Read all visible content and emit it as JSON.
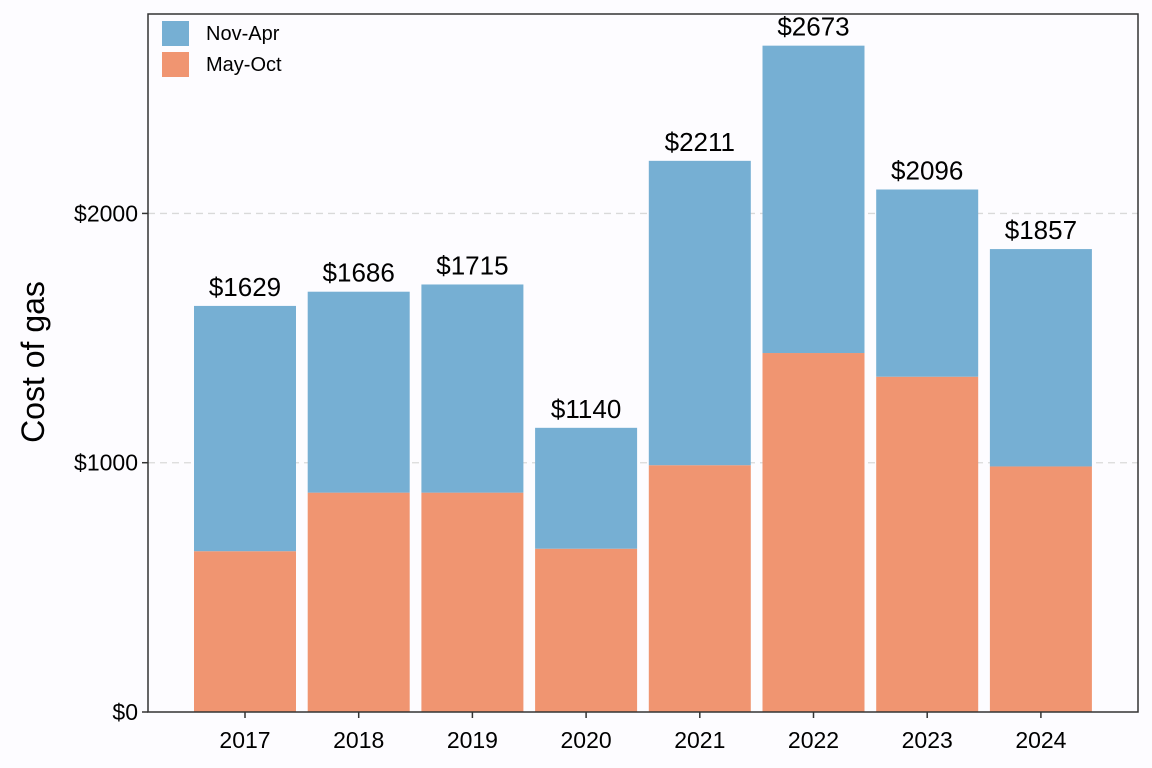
{
  "chart_data": {
    "type": "bar",
    "stacked": true,
    "ylabel": "Cost of gas",
    "xlabel": "",
    "ylim": [
      0,
      2800
    ],
    "y_ticks": [
      0,
      1000,
      2000
    ],
    "y_tick_labels": [
      "$0",
      "$1000",
      "$2000"
    ],
    "grid": "horizontal dashed",
    "legend_position": "top-left",
    "categories": [
      "2017",
      "2018",
      "2019",
      "2020",
      "2021",
      "2022",
      "2023",
      "2024"
    ],
    "series": [
      {
        "name": "May-Oct",
        "color": "#f09571",
        "values": [
          645,
          880,
          880,
          655,
          990,
          1440,
          1345,
          985
        ]
      },
      {
        "name": "Nov-Apr",
        "color": "#76afd3",
        "values": [
          984,
          806,
          835,
          485,
          1221,
          1233,
          751,
          872
        ]
      }
    ],
    "totals": [
      1629,
      1686,
      1715,
      1140,
      2211,
      2673,
      2096,
      1857
    ],
    "total_labels": [
      "$1629",
      "$1686",
      "$1715",
      "$1140",
      "$2211",
      "$2673",
      "$2096",
      "$1857"
    ],
    "legend": [
      {
        "label": "Nov-Apr",
        "color": "#76afd3"
      },
      {
        "label": "May-Oct",
        "color": "#f09571"
      }
    ]
  }
}
